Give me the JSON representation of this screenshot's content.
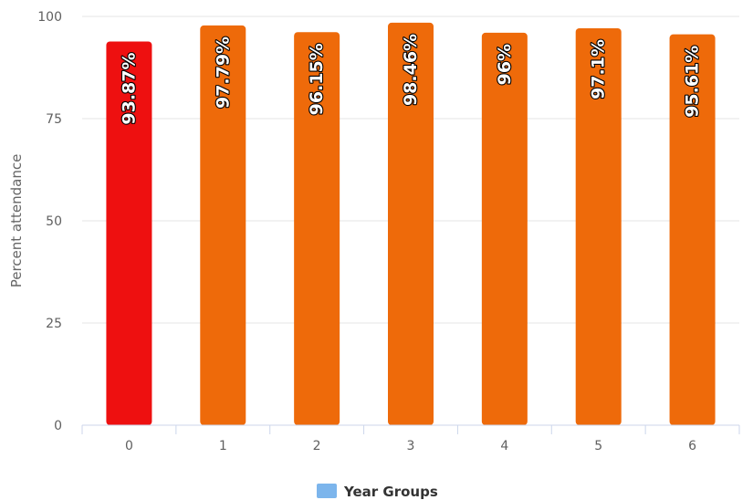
{
  "colors": {
    "highlight_bar": "#ee1010",
    "bar": "#ee6a0a",
    "legend_swatch": "#7cb5ec",
    "grid": "#e6e6e6",
    "axis_line": "#ccd6eb"
  },
  "chart_data": {
    "type": "bar",
    "title": "",
    "xlabel": "",
    "ylabel": "Percent attendance",
    "categories": [
      "0",
      "1",
      "2",
      "3",
      "4",
      "5",
      "6"
    ],
    "series": [
      {
        "name": "Year Groups",
        "values": [
          93.87,
          97.79,
          96.15,
          98.46,
          96,
          97.1,
          95.61
        ],
        "data_labels": [
          "93.87%",
          "97.79%",
          "96.15%",
          "98.46%",
          "96%",
          "97.1%",
          "95.61%"
        ]
      }
    ],
    "highlighted_category": "0",
    "ylim": [
      0,
      100
    ],
    "yticks": [
      0,
      25,
      50,
      75,
      100
    ],
    "grid": true,
    "legend": "bottom-center"
  }
}
